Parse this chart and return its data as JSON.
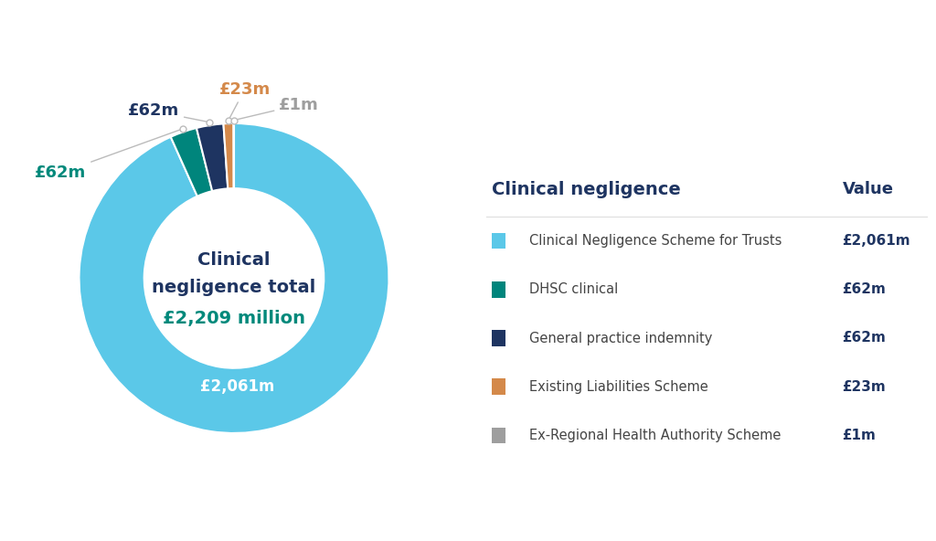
{
  "values": [
    2061,
    62,
    62,
    23,
    1
  ],
  "colors": [
    "#5bc8e8",
    "#00857c",
    "#1e3461",
    "#d4894a",
    "#9e9e9e"
  ],
  "labels": [
    "Clinical Negligence Scheme for Trusts",
    "DHSC clinical",
    "General practice indemnity",
    "Existing Liabilities Scheme",
    "Ex-Regional Health Authority Scheme"
  ],
  "value_labels": [
    "£2,061m",
    "£62m",
    "£62m",
    "£23m",
    "£1m"
  ],
  "legend_values": [
    "£2,061m",
    "£62m",
    "£62m",
    "£23m",
    "£1m"
  ],
  "center_text_line1": "Clinical",
  "center_text_line2": "negligence total",
  "center_text_line3": "£2,209 million",
  "center_color1": "#1e3461",
  "center_color2": "#1e3461",
  "center_color3": "#00897b",
  "table_title": "Clinical negligence",
  "table_col2": "Value",
  "background_color": "#ffffff",
  "navy": "#1e3461",
  "teal": "#00897b",
  "light_blue": "#5bc8e8",
  "orange": "#d4894a",
  "gray": "#9e9e9e",
  "ann_teal_label": "£62m",
  "ann_navy_label": "£62m",
  "ann_orange_label": "£23m",
  "ann_gray_label": "£1m",
  "large_label": "£2,061m"
}
